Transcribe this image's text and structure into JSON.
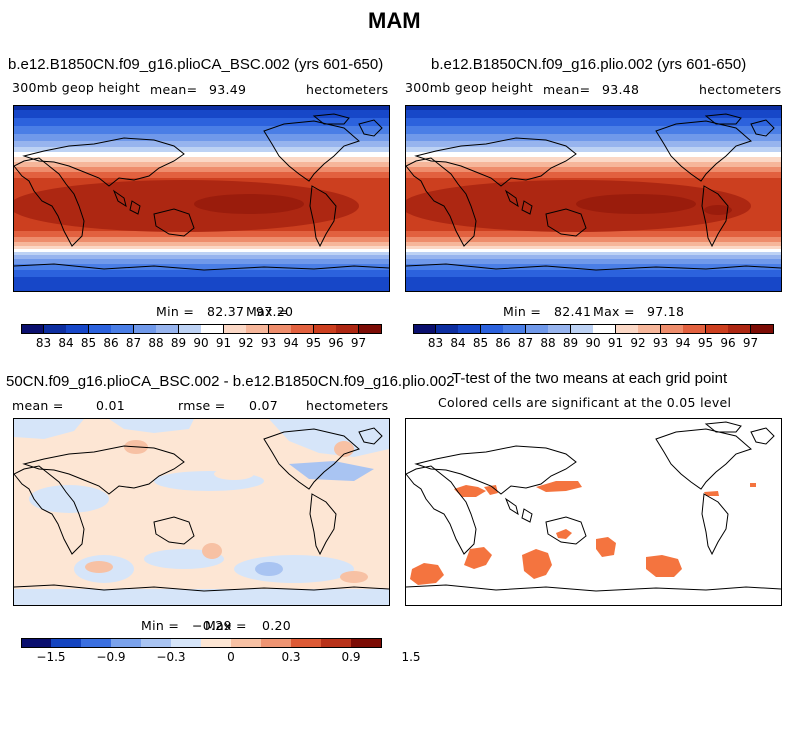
{
  "page_title": "MAM",
  "panels": [
    {
      "title": "b.e12.B1850CN.f09_g16.plioCA_BSC.002 (yrs 601-650)",
      "left_label": "300mb geop height",
      "mean_label": "mean=",
      "mean_value": "93.49",
      "units": "hectometers",
      "min_label": "Min =",
      "min_value": "82.37",
      "max_label": "Max =",
      "max_value": "97.20"
    },
    {
      "title": "b.e12.B1850CN.f09_g16.plio.002 (yrs 601-650)",
      "left_label": "300mb geop height",
      "mean_label": "mean=",
      "mean_value": "93.48",
      "units": "hectometers",
      "min_label": "Min =",
      "min_value": "82.41",
      "max_label": "Max =",
      "max_value": "97.18"
    },
    {
      "title": "50CN.f09_g16.plioCA_BSC.002 - b.e12.B1850CN.f09_g16.plio.002",
      "mean_label": "mean =",
      "mean_value": "0.01",
      "rmse_label": "rmse =",
      "rmse_value": "0.07",
      "units": "hectometers",
      "min_label": "Min =",
      "min_value": "−0.29",
      "max_label": "Max =",
      "max_value": "0.20"
    },
    {
      "title": "T-test of the two means at each grid point",
      "subtitle": "Colored cells are significant at the 0.05 level"
    }
  ],
  "chart_data": [
    {
      "type": "heatmap",
      "panel": "top-left",
      "variable": "300mb geop height",
      "units": "hectometers",
      "mean": 93.49,
      "min": 82.37,
      "max": 97.2,
      "colorbar_ticks": [
        "83",
        "84",
        "85",
        "86",
        "87",
        "88",
        "89",
        "90",
        "91",
        "92",
        "93",
        "94",
        "95",
        "96",
        "97"
      ],
      "colorbar_levels": 16
    },
    {
      "type": "heatmap",
      "panel": "top-right",
      "variable": "300mb geop height",
      "units": "hectometers",
      "mean": 93.48,
      "min": 82.41,
      "max": 97.18,
      "colorbar_ticks": [
        "83",
        "84",
        "85",
        "86",
        "87",
        "88",
        "89",
        "90",
        "91",
        "92",
        "93",
        "94",
        "95",
        "96",
        "97"
      ],
      "colorbar_levels": 16
    },
    {
      "type": "heatmap",
      "panel": "bottom-left",
      "variable": "difference",
      "units": "hectometers",
      "mean": 0.01,
      "rmse": 0.07,
      "min": -0.29,
      "max": 0.2,
      "colorbar_ticks": [
        "−1.5",
        "−0.9",
        "−0.3",
        "0",
        "0.3",
        "0.9",
        "1.5"
      ],
      "colorbar_levels": 12
    },
    {
      "type": "heatmap",
      "panel": "bottom-right",
      "variable": "t-test significance",
      "significance_level": 0.05
    }
  ],
  "colors": {
    "scale16": [
      "#0a0f6e",
      "#0d2ea0",
      "#1747c8",
      "#2c62dd",
      "#4a7ee6",
      "#7099ea",
      "#97b4ee",
      "#bdd2f4",
      "#ffffff",
      "#fbd8c6",
      "#f6b69a",
      "#ee8d6c",
      "#e2613f",
      "#cc3f1f",
      "#ad2712",
      "#7c0c05"
    ],
    "scale12": [
      "#0a0f6e",
      "#1444c0",
      "#3a6fe0",
      "#7aa2ec",
      "#a9c4f2",
      "#d6e5f9",
      "#fde6d4",
      "#f7c1a4",
      "#ee9472",
      "#dc5a36",
      "#b8321a",
      "#7c0c05"
    ],
    "sig": "#f4743f"
  }
}
